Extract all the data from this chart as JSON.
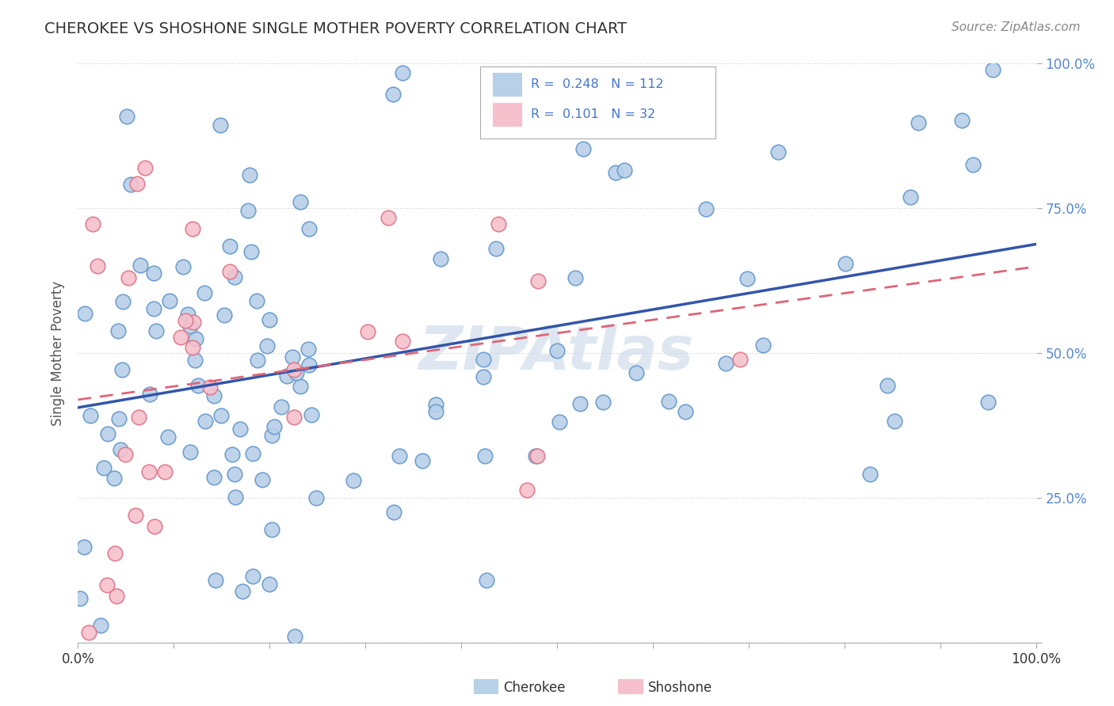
{
  "title": "CHEROKEE VS SHOSHONE SINGLE MOTHER POVERTY CORRELATION CHART",
  "source": "Source: ZipAtlas.com",
  "ylabel": "Single Mother Poverty",
  "cherokee_R": 0.248,
  "cherokee_N": 112,
  "shoshone_R": 0.101,
  "shoshone_N": 32,
  "cherokee_color": "#b8d0e8",
  "cherokee_edge": "#6699cc",
  "shoshone_color": "#f5c0cc",
  "shoshone_edge": "#dd7788",
  "trend_cherokee_color": "#3355aa",
  "trend_shoshone_color": "#dd6677",
  "watermark_color": "#c8d8e8",
  "background_color": "#ffffff",
  "right_tick_color": "#5588cc"
}
